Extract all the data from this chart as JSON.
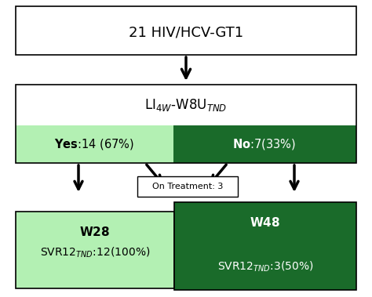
{
  "title_box": "21 HIV/HCV-GT1",
  "li_text": "LI$_{4W}$-W8U$_{TND}$",
  "yes_text": "$\\bf{Yes}$:14 (67%)",
  "no_text": "$\\bf{No}$:7(33%)",
  "on_treatment_text": "On Treatment: 3",
  "w28_title": "$\\bf{W28}$",
  "w28_sub": "SVR12$_{TND}$:12(100%)",
  "w48_title": "$\\bf{W48}$",
  "w48_sub": "SVR12$_{TND}$:3(50%)",
  "color_white": "#ffffff",
  "color_light_green": "#b3f0b3",
  "color_dark_green": "#1a6b2a",
  "color_black": "#000000",
  "color_gray_bg": "#f0f0f0",
  "bg_color": "#ffffff"
}
